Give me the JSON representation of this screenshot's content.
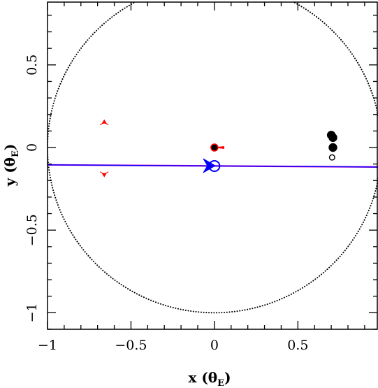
{
  "chart_data": {
    "type": "scatter",
    "xlabel": "x (θ",
    "xlabel_sub": "E",
    "xlabel_close": ")",
    "ylabel": "y (θ",
    "ylabel_sub": "E",
    "ylabel_close": ")",
    "xlim": [
      -1.0,
      0.98
    ],
    "ylim": [
      -1.1,
      0.88
    ],
    "xticks": [
      {
        "value": -1.0,
        "label": "−1"
      },
      {
        "value": -0.5,
        "label": "−0.5"
      },
      {
        "value": 0.0,
        "label": "0"
      },
      {
        "value": 0.5,
        "label": "0.5"
      }
    ],
    "yticks": [
      {
        "value": -1.0,
        "label": "−1"
      },
      {
        "value": -0.5,
        "label": "−0.5"
      },
      {
        "value": 0.0,
        "label": "0"
      },
      {
        "value": 0.5,
        "label": "0.5"
      }
    ],
    "grid": false,
    "einstein_ring": {
      "cx": 0.0,
      "cy": 0.0,
      "r": 1.0,
      "style": "dotted",
      "color": "#000000"
    },
    "source_trajectory": {
      "color": "#0000ff",
      "points": [
        [
          -1.0,
          -0.105
        ],
        [
          0.98,
          -0.118
        ]
      ]
    },
    "caustic_cusps": {
      "color": "#ff0000",
      "points": [
        [
          -0.66,
          0.145
        ],
        [
          -0.66,
          -0.155
        ],
        [
          0.015,
          0.0
        ]
      ]
    },
    "central_lens": {
      "x": 0.0,
      "y": 0.0,
      "fill": "#000000",
      "outline": "#ff0000"
    },
    "lens_components": [
      {
        "x": 0.7,
        "y": 0.075,
        "size": "large",
        "filled": true
      },
      {
        "x": 0.71,
        "y": 0.06,
        "size": "large",
        "filled": true
      },
      {
        "x": 0.71,
        "y": 0.0,
        "size": "large",
        "filled": true
      },
      {
        "x": 0.705,
        "y": -0.06,
        "size": "small",
        "filled": false
      }
    ],
    "source_marker": {
      "x": 0.0,
      "y": -0.112,
      "style": "open-circle",
      "color": "#0000ff"
    },
    "direction_arrow": {
      "x": -0.05,
      "y": -0.11,
      "direction": "right",
      "color": "#0000ff"
    }
  }
}
